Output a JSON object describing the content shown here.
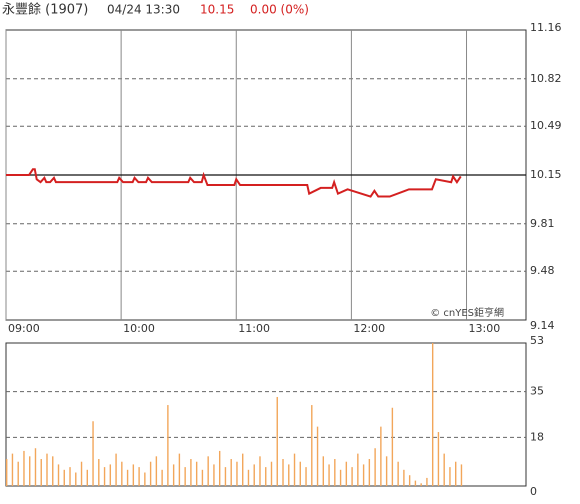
{
  "header": {
    "name": "永豐餘 (1907)",
    "time": "04/24 13:30",
    "price": "10.15",
    "change": "0.00 (0%)"
  },
  "chart_data": [
    {
      "type": "line",
      "color": "#d42020",
      "reference_line": 10.15,
      "xlim": [
        0,
        271
      ],
      "xticks": [
        {
          "value": 0,
          "label": "09:00"
        },
        {
          "value": 60,
          "label": "10:00"
        },
        {
          "value": 120,
          "label": "11:00"
        },
        {
          "value": 180,
          "label": "12:00"
        },
        {
          "value": 240,
          "label": "13:00"
        }
      ],
      "ylim": [
        9.14,
        11.16
      ],
      "yticks": [
        11.16,
        10.82,
        10.49,
        10.15,
        9.81,
        9.48,
        9.14
      ],
      "watermark": "© cnYES鉅亨網",
      "x": [
        0,
        12,
        14,
        15,
        16,
        18,
        20,
        21,
        23,
        25,
        26,
        28,
        58,
        59,
        61,
        66,
        67,
        69,
        73,
        74,
        76,
        95,
        96,
        98,
        102,
        103,
        105,
        119,
        120,
        122,
        157,
        158,
        164,
        170,
        171,
        173,
        178,
        190,
        192,
        194,
        200,
        208,
        210,
        214,
        222,
        224,
        232,
        233,
        235,
        237
      ],
      "values": [
        10.15,
        10.15,
        10.19,
        10.19,
        10.12,
        10.1,
        10.13,
        10.1,
        10.1,
        10.13,
        10.1,
        10.1,
        10.1,
        10.13,
        10.1,
        10.1,
        10.13,
        10.1,
        10.1,
        10.13,
        10.1,
        10.1,
        10.13,
        10.1,
        10.1,
        10.15,
        10.08,
        10.08,
        10.12,
        10.08,
        10.08,
        10.02,
        10.06,
        10.06,
        10.1,
        10.02,
        10.05,
        10.0,
        10.04,
        10.0,
        10.0,
        10.04,
        10.05,
        10.05,
        10.05,
        10.12,
        10.1,
        10.14,
        10.1,
        10.14
      ]
    },
    {
      "type": "bar",
      "color": "#f2a65a",
      "xlim": [
        0,
        271
      ],
      "ylim": [
        0,
        53
      ],
      "yticks": [
        53,
        35,
        18,
        0
      ],
      "x": [
        0,
        3,
        6,
        9,
        12,
        15,
        18,
        21,
        24,
        27,
        30,
        33,
        36,
        39,
        42,
        45,
        48,
        51,
        54,
        57,
        60,
        63,
        66,
        69,
        72,
        75,
        78,
        81,
        84,
        87,
        90,
        93,
        96,
        99,
        102,
        105,
        108,
        111,
        114,
        117,
        120,
        123,
        126,
        129,
        132,
        135,
        138,
        141,
        144,
        147,
        150,
        153,
        156,
        159,
        162,
        165,
        168,
        171,
        174,
        177,
        180,
        183,
        186,
        189,
        192,
        195,
        198,
        201,
        204,
        207,
        210,
        213,
        216,
        219,
        222,
        225,
        228,
        231,
        234,
        237
      ],
      "values": [
        10,
        12,
        9,
        13,
        11,
        14,
        10,
        12,
        11,
        8,
        6,
        7,
        5,
        9,
        6,
        24,
        10,
        7,
        8,
        12,
        9,
        6,
        8,
        7,
        5,
        9,
        11,
        6,
        30,
        8,
        12,
        7,
        10,
        9,
        6,
        11,
        8,
        13,
        7,
        10,
        9,
        12,
        6,
        8,
        11,
        7,
        9,
        33,
        10,
        8,
        12,
        9,
        7,
        30,
        22,
        11,
        8,
        10,
        6,
        9,
        7,
        12,
        8,
        10,
        14,
        22,
        11,
        29,
        9,
        6,
        4,
        2,
        1,
        3,
        53,
        20,
        12,
        7,
        9,
        8
      ]
    }
  ]
}
